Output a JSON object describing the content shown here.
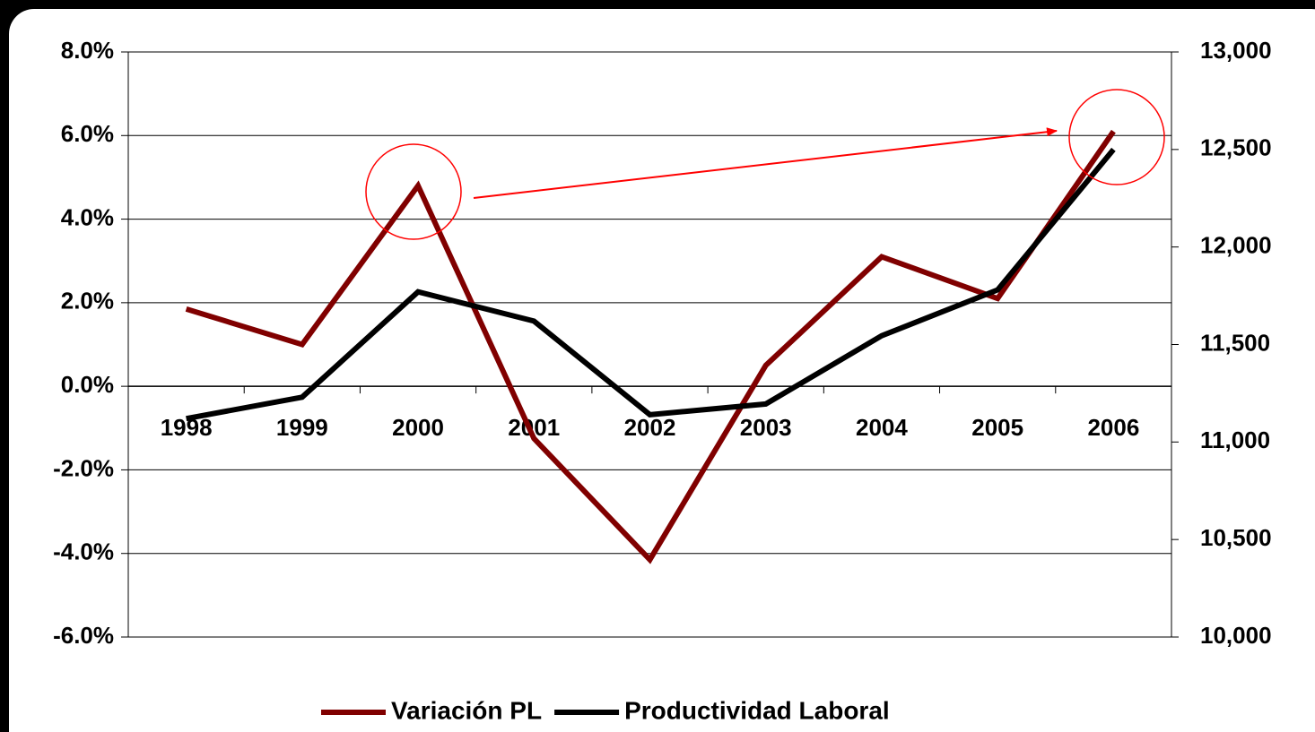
{
  "chart_data": {
    "type": "line",
    "categories": [
      "1998",
      "1999",
      "2000",
      "2001",
      "2002",
      "2003",
      "2004",
      "2005",
      "2006"
    ],
    "series": [
      {
        "name": "Variación PL",
        "color": "#800000",
        "values": [
          1.85,
          1.0,
          4.8,
          -1.25,
          -4.15,
          0.5,
          3.1,
          2.1,
          6.1
        ]
      },
      {
        "name": "Productividad Laboral",
        "color": "#000000",
        "axis": "y2",
        "values": [
          11120,
          11230,
          11770,
          11620,
          11140,
          11195,
          11545,
          11780,
          12500
        ]
      }
    ],
    "ylim": [
      -6,
      8
    ],
    "yticks": [
      {
        "value": -6,
        "label": "-6.0%"
      },
      {
        "value": -4,
        "label": "-4.0%"
      },
      {
        "value": -2,
        "label": "-2.0%"
      },
      {
        "value": 0,
        "label": "0.0%"
      },
      {
        "value": 2,
        "label": "2.0%"
      },
      {
        "value": 4,
        "label": "4.0%"
      },
      {
        "value": 6,
        "label": "6.0%"
      },
      {
        "value": 8,
        "label": "8.0%"
      }
    ],
    "y2lim": [
      10000,
      13000
    ],
    "y2ticks": [
      {
        "value": 10000,
        "label": "10,000"
      },
      {
        "value": 10500,
        "label": "10,500"
      },
      {
        "value": 11000,
        "label": "11,000"
      },
      {
        "value": 11500,
        "label": "11,500"
      },
      {
        "value": 12000,
        "label": "12,000"
      },
      {
        "value": 12500,
        "label": "12,500"
      },
      {
        "value": 13000,
        "label": "13,000"
      }
    ],
    "grid": true,
    "legend": "bottom"
  }
}
